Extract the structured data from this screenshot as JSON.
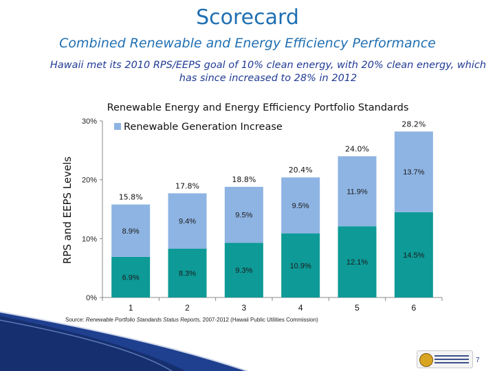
{
  "slide": {
    "title": "Scorecard",
    "subtitle": "Combined Renewable and Energy Efficiency Performance",
    "note": "Hawaii met its 2010 RPS/EEPS goal of 10% clean energy, with 20% clean energy, which has since increased to 28% in 2012",
    "source_prefix": "Source: ",
    "source_italic": "Renewable Portfolio Standards Status Reports,",
    "source_suffix": " 2007-2012 (Hawaii Public Utilities Commission)",
    "page_number": "7"
  },
  "chart_data": {
    "type": "bar",
    "stacked": true,
    "title": "Renewable Energy and Energy Efficiency Portfolio Standards",
    "ylabel": "RPS and EEPS Levels",
    "xlabel": "",
    "ylim": [
      0,
      30
    ],
    "yticks": [
      "0%",
      "10%",
      "20%",
      "30%"
    ],
    "categories": [
      "1",
      "2",
      "3",
      "4",
      "5",
      "6"
    ],
    "series": [
      {
        "values": [
          6.9,
          8.3,
          9.3,
          10.9,
          12.1,
          14.5
        ],
        "labels": [
          "6.9%",
          "8.3%",
          "9.3%",
          "10.9%",
          "12.1%",
          "14.5%"
        ],
        "color": "#0e9a97"
      },
      {
        "name": "Renewable Generation Increase",
        "values": [
          8.9,
          9.4,
          9.5,
          9.5,
          11.9,
          13.7
        ],
        "labels": [
          "8.9%",
          "9.4%",
          "9.5%",
          "9.5%",
          "11.9%",
          "13.7%"
        ],
        "color": "#8eb4e3"
      }
    ],
    "totals": [
      "15.8%",
      "17.8%",
      "18.8%",
      "20.4%",
      "24.0%",
      "28.2%"
    ],
    "legend": "top-left",
    "grid": false
  }
}
